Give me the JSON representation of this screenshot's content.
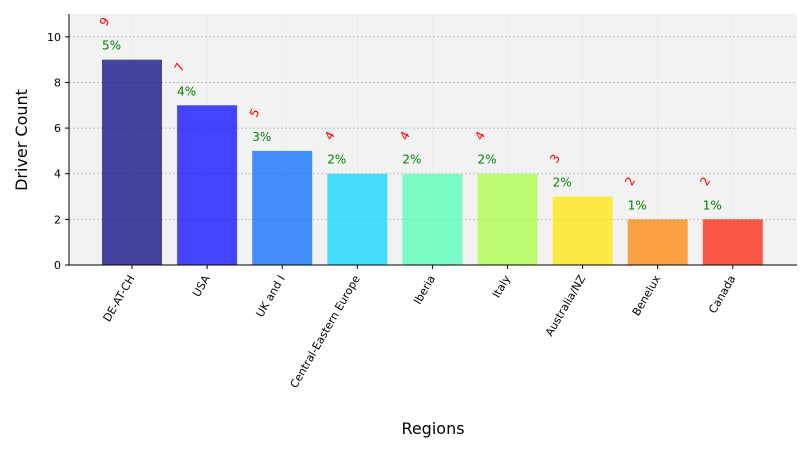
{
  "chart_data": {
    "type": "bar",
    "xlabel": "Regions",
    "ylabel": "Driver Count",
    "ylim": [
      0,
      11
    ],
    "yticks": [
      0,
      2,
      4,
      6,
      8,
      10
    ],
    "grid": true,
    "categories": [
      "DE-AT-CH",
      "USA",
      "UK and I",
      "Central-Eastern Europe",
      "Iberia",
      "Italy",
      "Australia/NZ",
      "Benelux",
      "Canada"
    ],
    "values": [
      9,
      7,
      5,
      4,
      4,
      4,
      3,
      2,
      2
    ],
    "count_labels": [
      "9",
      "7",
      "5",
      "4",
      "4",
      "4",
      "3",
      "2",
      "2"
    ],
    "percent_labels": [
      "5%",
      "4%",
      "3%",
      "2%",
      "2%",
      "2%",
      "2%",
      "1%",
      "1%"
    ],
    "colors": [
      "#00007f",
      "#0000ff",
      "#0066ff",
      "#00d4ff",
      "#4dffb3",
      "#a8ff3e",
      "#ffe600",
      "#ff8000",
      "#ff1a00"
    ],
    "bar_opacity": 0.72,
    "plot_background": "#f2f2f2",
    "count_label_color": "#ff0000",
    "percent_label_color": "#008000"
  }
}
